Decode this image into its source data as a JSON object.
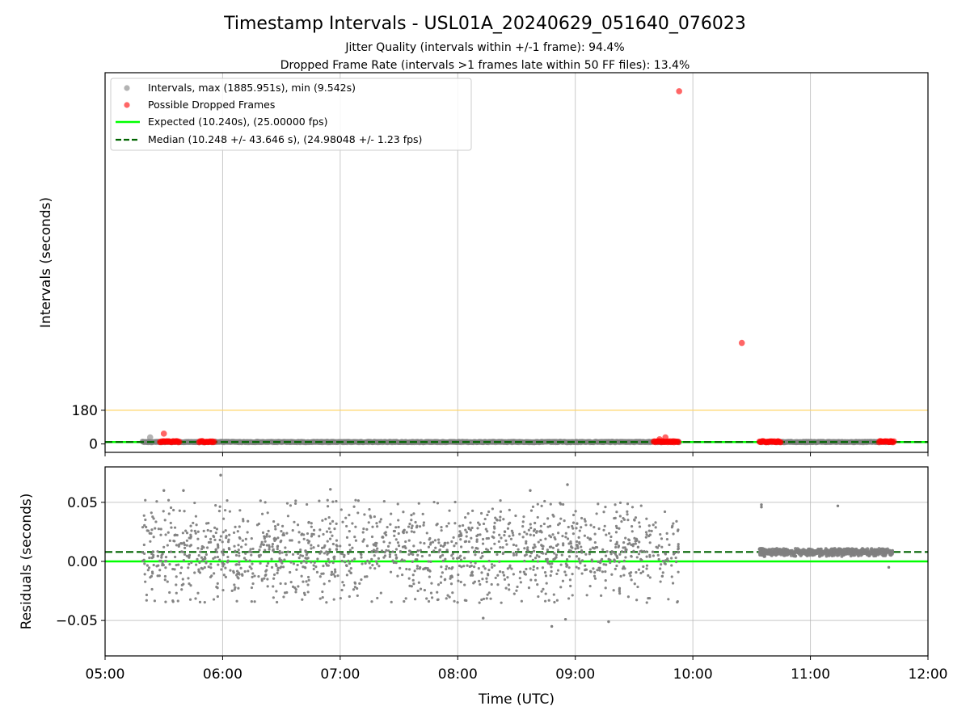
{
  "chart_data": [
    {
      "type": "scatter",
      "title": "Timestamp Intervals - USL01A_20240629_051640_076023",
      "subtitle_lines": [
        "Jitter Quality (intervals within +/-1 frame): 94.4%",
        "Dropped Frame Rate (intervals >1 frames late within 50 FF files): 13.4%"
      ],
      "xlabel": "",
      "ylabel": "Intervals (seconds)",
      "xlim": [
        "05:00",
        "12:00"
      ],
      "ylim": [
        -45,
        1985
      ],
      "y_ticks": [
        0,
        180
      ],
      "y_tick_labels": [
        "0",
        "180"
      ],
      "grid": "x only",
      "legend_position": "upper-left",
      "legend": [
        "Intervals, max (1885.951s), min (9.542s)",
        "Possible Dropped Frames",
        "Expected (10.240s), (25.00000 fps)",
        "Median (10.248 +/- 43.646 s), (24.98048 +/- 1.23 fps)"
      ],
      "reference_lines": {
        "expected": 10.24,
        "median": 10.248,
        "threshold": 180
      },
      "series": [
        {
          "name": "Intervals, max (1885.951s), min (9.542s)",
          "color": "#808080",
          "note": "dense band of ~10.24 s intervals",
          "segments": [
            {
              "x_start": "05:19",
              "x_end": "09:53",
              "y": 10.25
            },
            {
              "x_start": "10:34",
              "x_end": "11:42",
              "y": 10.25
            }
          ],
          "points": [
            {
              "x": "05:23",
              "y": 35
            }
          ]
        },
        {
          "name": "Possible Dropped Frames",
          "color": "#ff0000",
          "points": [
            {
              "x": "05:30",
              "y": 55
            },
            {
              "x": "09:43",
              "y": 25
            },
            {
              "x": "09:46",
              "y": 35
            },
            {
              "x": "09:53",
              "y": 1885.951
            },
            {
              "x": "10:25",
              "y": 540
            },
            {
              "x": "11:41",
              "y": 15
            }
          ],
          "clusters": [
            {
              "x_start": "05:28",
              "x_end": "05:38",
              "y": 12
            },
            {
              "x_start": "05:48",
              "x_end": "05:56",
              "y": 12
            },
            {
              "x_start": "09:40",
              "x_end": "09:53",
              "y": 12
            },
            {
              "x_start": "10:34",
              "x_end": "10:45",
              "y": 12
            },
            {
              "x_start": "11:35",
              "x_end": "11:43",
              "y": 12
            }
          ]
        }
      ]
    },
    {
      "type": "scatter",
      "xlabel": "Time (UTC)",
      "ylabel": "Residuals (seconds)",
      "xlim": [
        "05:00",
        "12:00"
      ],
      "x_ticks": [
        "05:00",
        "06:00",
        "07:00",
        "08:00",
        "09:00",
        "10:00",
        "11:00",
        "12:00"
      ],
      "ylim": [
        -0.08,
        0.08
      ],
      "y_ticks": [
        -0.05,
        0,
        0.05
      ],
      "y_tick_labels": [
        "−0.05",
        "0.00",
        "0.05"
      ],
      "grid": "x and y",
      "reference_lines": {
        "expected": 0.0,
        "median": 0.008
      },
      "series": [
        {
          "name": "Residuals",
          "color": "#808080",
          "distribution": [
            {
              "x_start": "05:19",
              "x_end": "09:53",
              "y_min": -0.035,
              "y_max": 0.052,
              "center": 0.008,
              "count": 1500
            },
            {
              "x_start": "10:34",
              "x_end": "11:42",
              "y_min": 0.004,
              "y_max": 0.011,
              "center": 0.008,
              "count": 700
            }
          ],
          "outliers": [
            {
              "x": "05:59",
              "y": 0.073
            },
            {
              "x": "06:55",
              "y": 0.061
            },
            {
              "x": "05:30",
              "y": 0.06
            },
            {
              "x": "05:40",
              "y": 0.06
            },
            {
              "x": "08:13",
              "y": -0.048
            },
            {
              "x": "08:48",
              "y": -0.055
            },
            {
              "x": "08:56",
              "y": 0.065
            },
            {
              "x": "08:55",
              "y": -0.049
            },
            {
              "x": "09:17",
              "y": -0.051
            },
            {
              "x": "08:37",
              "y": 0.06
            },
            {
              "x": "10:35",
              "y": 0.048
            },
            {
              "x": "10:35",
              "y": 0.046
            },
            {
              "x": "11:14",
              "y": 0.047
            },
            {
              "x": "11:40",
              "y": -0.005
            }
          ]
        }
      ]
    }
  ]
}
